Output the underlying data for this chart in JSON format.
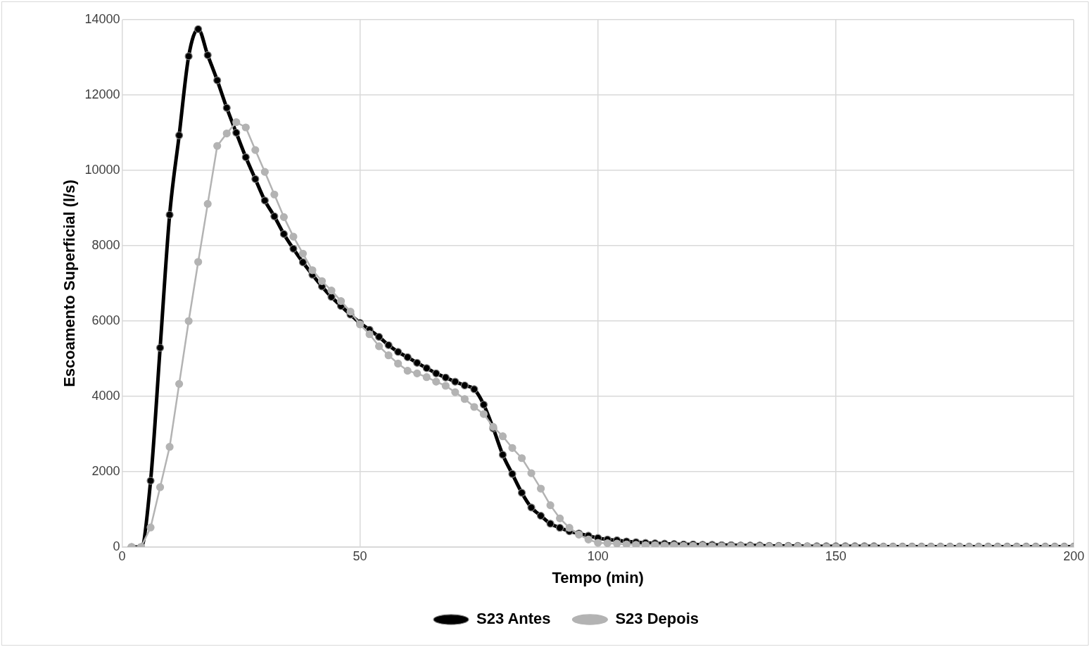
{
  "chart_data": {
    "type": "line",
    "xlabel": "Tempo (min)",
    "ylabel": "Escoamento Superficial (l/s)",
    "x": [
      2,
      4,
      6,
      8,
      10,
      12,
      14,
      16,
      18,
      20,
      22,
      24,
      26,
      28,
      30,
      32,
      34,
      36,
      38,
      40,
      42,
      44,
      46,
      48,
      50,
      52,
      54,
      56,
      58,
      60,
      62,
      64,
      66,
      68,
      70,
      72,
      74,
      76,
      78,
      80,
      82,
      84,
      86,
      88,
      90,
      92,
      94,
      96,
      98,
      100,
      102,
      104,
      106,
      108,
      110,
      112,
      114,
      116,
      118,
      120,
      122,
      124,
      126,
      128,
      130,
      132,
      134,
      136,
      138,
      140,
      142,
      144,
      146,
      148,
      150,
      152,
      154,
      156,
      158,
      160,
      162,
      164,
      166,
      168,
      170,
      172,
      174,
      176,
      178,
      180,
      182,
      184,
      186,
      188,
      190,
      192,
      194,
      196,
      198,
      200
    ],
    "xlim": [
      0,
      200
    ],
    "xticks": [
      0,
      50,
      100,
      150,
      200
    ],
    "ylim": [
      0,
      14000
    ],
    "yticks": [
      0,
      2000,
      4000,
      6000,
      8000,
      10000,
      12000,
      14000
    ],
    "grid": true,
    "legend": "bottom",
    "marker": "circle",
    "series": [
      {
        "name": "S23 Antes",
        "color": "#000000",
        "values": [
          0,
          0,
          1760,
          5290,
          8820,
          10930,
          13030,
          13750,
          13060,
          12390,
          11660,
          11000,
          10350,
          9770,
          9200,
          8780,
          8310,
          7920,
          7560,
          7230,
          6920,
          6640,
          6400,
          6170,
          5950,
          5770,
          5580,
          5360,
          5180,
          5040,
          4890,
          4750,
          4610,
          4500,
          4390,
          4290,
          4190,
          3780,
          3150,
          2450,
          1940,
          1440,
          1050,
          830,
          620,
          510,
          420,
          360,
          300,
          240,
          200,
          180,
          150,
          130,
          110,
          100,
          90,
          80,
          70,
          70,
          60,
          60,
          50,
          50,
          40,
          40,
          40,
          30,
          30,
          30,
          30,
          20,
          20,
          20,
          20,
          20,
          20,
          20,
          20,
          10,
          10,
          10,
          10,
          10,
          10,
          10,
          10,
          10,
          10,
          10,
          10,
          10,
          10,
          10,
          10,
          10,
          10,
          10,
          10,
          10
        ]
      },
      {
        "name": "S23 Depois",
        "color": "#b3b3b3",
        "values": [
          0,
          0,
          520,
          1590,
          2660,
          4330,
          6000,
          7570,
          9110,
          10650,
          10980,
          11280,
          11140,
          10540,
          9960,
          9360,
          8760,
          8240,
          7790,
          7350,
          7060,
          6810,
          6530,
          6250,
          5910,
          5650,
          5330,
          5090,
          4870,
          4680,
          4610,
          4510,
          4390,
          4280,
          4110,
          3930,
          3720,
          3530,
          3190,
          2940,
          2630,
          2360,
          1960,
          1550,
          1110,
          760,
          510,
          330,
          200,
          110,
          100,
          90,
          70,
          60,
          50,
          50,
          40,
          40,
          30,
          30,
          30,
          20,
          20,
          20,
          20,
          10,
          10,
          10,
          10,
          10,
          10,
          10,
          0,
          0,
          0,
          0,
          0,
          0,
          0,
          0,
          0,
          0,
          0,
          0,
          0,
          0,
          0,
          0,
          0,
          0,
          0,
          0,
          0,
          0,
          0,
          0,
          0,
          0,
          0,
          0
        ]
      }
    ]
  }
}
